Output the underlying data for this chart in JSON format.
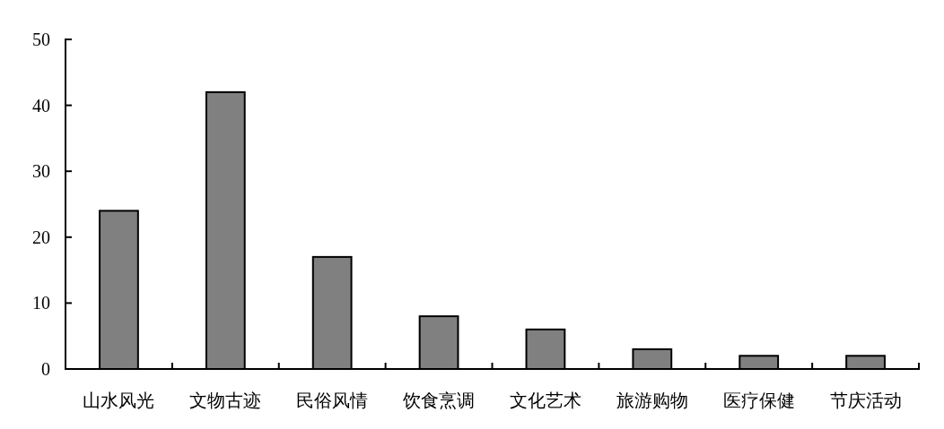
{
  "chart_data": {
    "type": "bar",
    "categories": [
      "山水风光",
      "文物古迹",
      "民俗风情",
      "饮食烹调",
      "文化艺术",
      "旅游购物",
      "医疗保健",
      "节庆活动"
    ],
    "values": [
      24,
      42,
      17,
      8,
      6,
      3,
      2,
      2
    ],
    "color": "#808080",
    "ylim": [
      0,
      50
    ],
    "yticks": [
      0,
      10,
      20,
      30,
      40,
      50
    ]
  }
}
